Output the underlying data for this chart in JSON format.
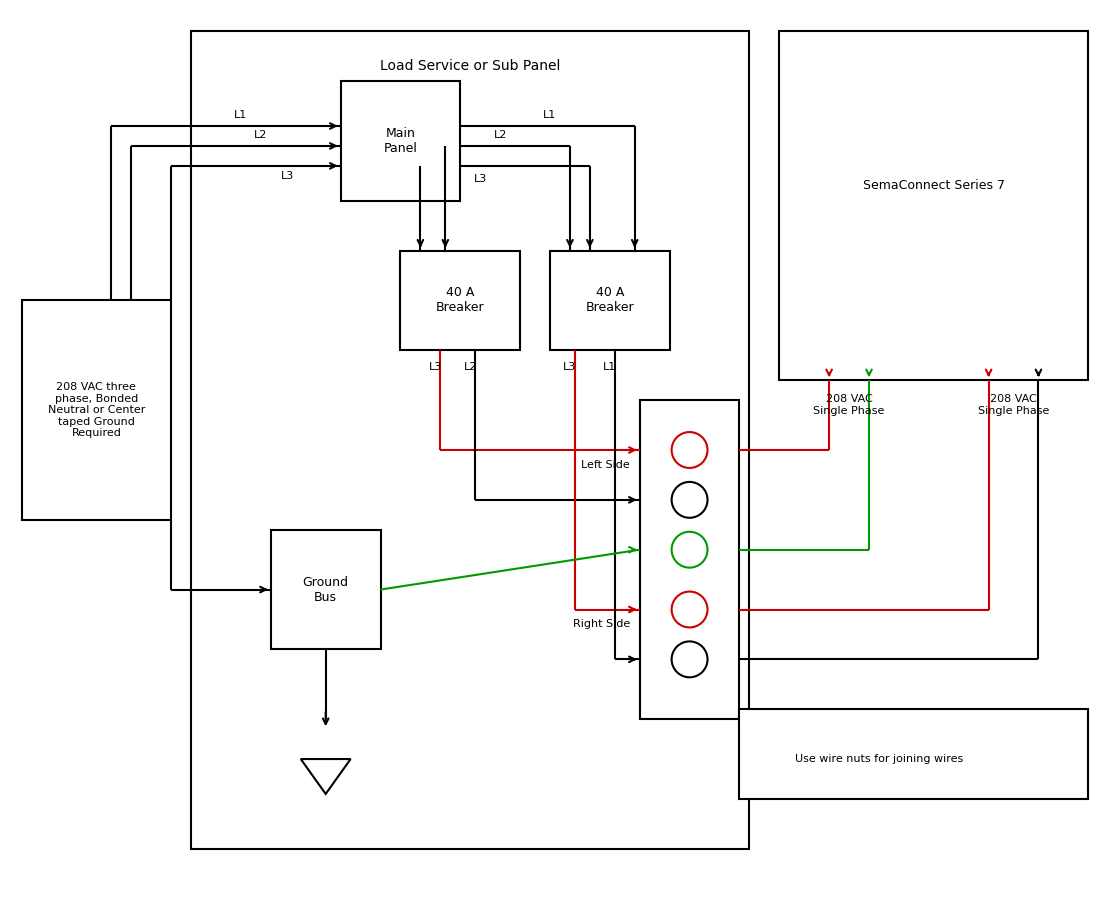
{
  "background_color": "#ffffff",
  "title": "Load Service or Sub Panel",
  "sema_title": "SemaConnect Series 7",
  "vac_label": "208 VAC three\nphase, Bonded\nNeutral or Center\ntaped Ground\nRequired",
  "ground_label": "Ground\nBus",
  "left_side_label": "Left Side",
  "right_side_label": "Right Side",
  "wire_nut_label": "Use wire nuts for joining wires",
  "vac_sp1": "208 VAC\nSingle Phase",
  "vac_sp2": "208 VAC\nSingle Phase",
  "main_panel_label": "Main\nPanel",
  "breaker1_label": "40 A\nBreaker",
  "breaker2_label": "40 A\nBreaker",
  "lw": 1.5,
  "black": "#000000",
  "red": "#cc0000",
  "green": "#009900"
}
